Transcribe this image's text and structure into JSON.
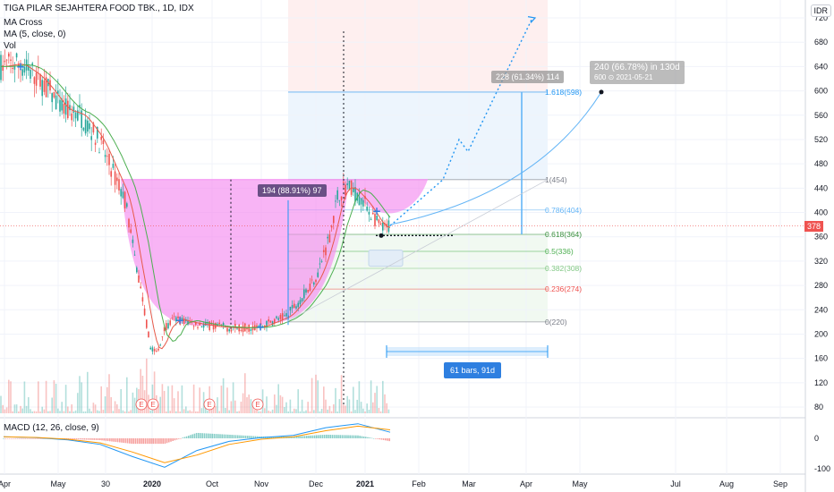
{
  "header": {
    "symbol_title": "TIGA PILAR SEJAHTERA FOOD TBK., 1D, IDX",
    "ma_cross": "MA Cross",
    "ma": "MA (5, close, 0)",
    "vol": "Vol",
    "macd": "MACD (12, 26, close, 9)",
    "currency": "IDR"
  },
  "labels": {
    "cup_depth": "194 (88.91%) 97",
    "projection": "228 (61.34%) 114",
    "target_line1": "240 (66.78%) in 130d",
    "target_line2": "600 ⊙ 2021-05-21",
    "range": "61 bars, 91d",
    "last_price": "378"
  },
  "colors": {
    "up": "#26a69a",
    "down": "#ef5350",
    "cup_fill": "#f48cf0",
    "ma_red": "#e65a4a",
    "ma_green": "#4caf50",
    "macd_line": "#2196f3",
    "signal_line": "#ff9800",
    "accent": "#2e7fe0"
  },
  "chart_data": [
    {
      "type": "candlestick",
      "title": "TIGA PILAR SEJAHTERA FOOD TBK., 1D, IDX",
      "ylim": [
        60,
        740
      ],
      "y_ticks": [
        80,
        120,
        160,
        200,
        240,
        280,
        320,
        360,
        400,
        440,
        480,
        520,
        560,
        600,
        640,
        680,
        720
      ],
      "x_ticks": [
        "Apr",
        "May",
        "30",
        "2020",
        "Oct",
        "Nov",
        "Dec",
        "2021",
        "Feb",
        "Mar",
        "Apr",
        "May",
        "Jul",
        "Aug",
        "Sep"
      ],
      "approx_close_path": [
        {
          "x": "Apr 2019",
          "y": 640
        },
        {
          "x": "May 2019",
          "y": 600
        },
        {
          "x": "30",
          "y": 520
        },
        {
          "x": "Dec 2019",
          "y": 440
        },
        {
          "x": "2020",
          "y": 200
        },
        {
          "x": "2020 low",
          "y": 165
        },
        {
          "x": "Oct",
          "y": 215
        },
        {
          "x": "Nov",
          "y": 215
        },
        {
          "x": "Dec",
          "y": 300
        },
        {
          "x": "Dec late",
          "y": 440
        },
        {
          "x": "2021",
          "y": 420
        },
        {
          "x": "Jan 2021",
          "y": 378
        }
      ],
      "last": 378,
      "fibonacci": [
        {
          "level": "1.618",
          "value": 598
        },
        {
          "level": "1",
          "value": 454
        },
        {
          "level": "0.786",
          "value": 404
        },
        {
          "level": "0.618",
          "value": 364
        },
        {
          "level": "0.5",
          "value": 336
        },
        {
          "level": "0.382",
          "value": 308
        },
        {
          "level": "0.236",
          "value": 274
        },
        {
          "level": "0",
          "value": 220
        }
      ],
      "fib_labels": [
        "1.618(598)",
        "1(454)",
        "0.786(404)",
        "0.618(364)",
        "0.5(336)",
        "0.382(308)",
        "0.236(274)",
        "0(220)"
      ]
    },
    {
      "type": "line",
      "title": "MACD (12, 26, close, 9)",
      "y_ticks": [
        0,
        -100
      ],
      "series": [
        {
          "name": "MACD",
          "values": [
            5,
            2,
            -5,
            -20,
            -60,
            -95,
            -40,
            -10,
            2,
            10,
            35,
            48,
            20
          ]
        },
        {
          "name": "Signal",
          "values": [
            5,
            3,
            -3,
            -15,
            -45,
            -80,
            -55,
            -20,
            -3,
            5,
            25,
            40,
            28
          ]
        }
      ]
    }
  ]
}
